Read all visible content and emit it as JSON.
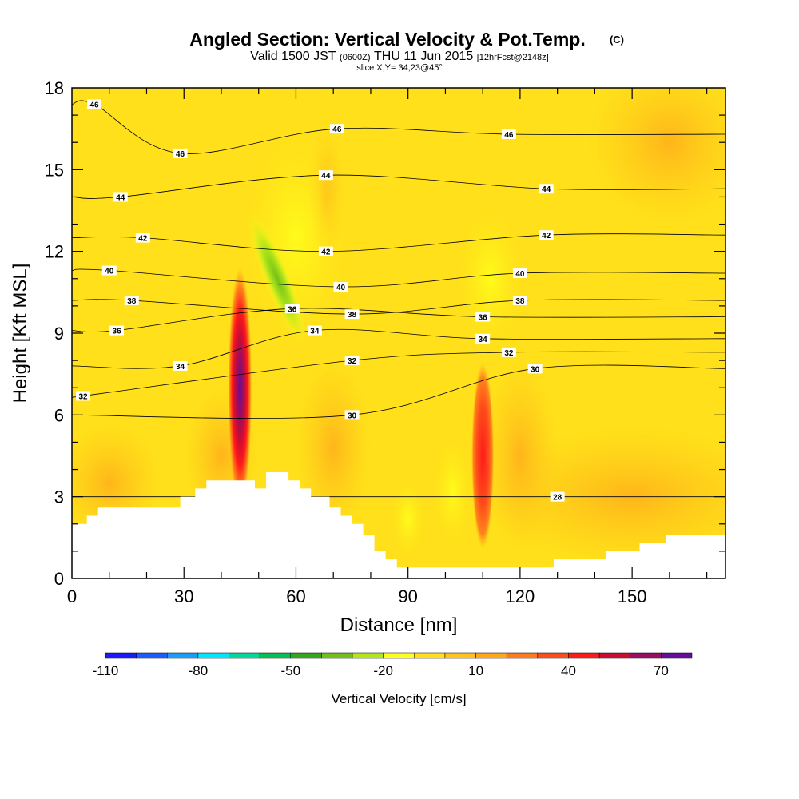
{
  "chart_data": {
    "type": "heatmap",
    "title": "Angled Section: Vertical Velocity & Pot.Temp.",
    "title_mark": "(C)",
    "subtitle": {
      "prefix": "Valid 1500 JST",
      "utc": "(0600Z)",
      "date": "THU 11 Jun 2015",
      "forecast": "[12hrFcst@2148z]"
    },
    "slice_label": "slice X,Y= 34,23@45°",
    "xlabel": "Distance [nm]",
    "ylabel": "Height [Kft MSL]",
    "xlim": [
      0,
      175
    ],
    "ylim": [
      0,
      18
    ],
    "x_ticks": [
      0,
      30,
      60,
      90,
      120,
      150
    ],
    "y_ticks": [
      0,
      3,
      6,
      9,
      12,
      15,
      18
    ],
    "colorbar": {
      "label": "Vertical Velocity [cm/s]",
      "ticks": [
        "-110",
        "-80",
        "-50",
        "-20",
        "10",
        "40",
        "70"
      ],
      "colors": [
        "#1a1aff",
        "#1a5cff",
        "#1a9cff",
        "#00e6ff",
        "#00d99a",
        "#00bf55",
        "#33a61a",
        "#73bf1a",
        "#b3e61a",
        "#ffff1a",
        "#ffe01a",
        "#ffc31a",
        "#ffa61a",
        "#ff7a1a",
        "#ff4d1a",
        "#ff1a1a",
        "#cc0d33",
        "#990d66",
        "#660d99"
      ]
    },
    "series": [
      {
        "name": "updraft",
        "points": [
          [
            45,
            7
          ],
          [
            110,
            4.5
          ]
        ]
      },
      {
        "name": "downdraft",
        "points": [
          [
            55,
            11
          ]
        ]
      }
    ],
    "isentropes": [
      {
        "level": 28,
        "labels": [
          [
            130,
            3
          ]
        ]
      },
      {
        "level": 30,
        "labels": [
          [
            75,
            6
          ],
          [
            124,
            7.7
          ]
        ]
      },
      {
        "level": 32,
        "labels": [
          [
            3,
            6.7
          ],
          [
            75,
            8
          ],
          [
            117,
            8.3
          ]
        ]
      },
      {
        "level": 34,
        "labels": [
          [
            29,
            7.8
          ],
          [
            65,
            9.1
          ],
          [
            110,
            8.8
          ]
        ]
      },
      {
        "level": 36,
        "labels": [
          [
            12,
            9.1
          ],
          [
            59,
            9.9
          ],
          [
            110,
            9.6
          ]
        ]
      },
      {
        "level": 38,
        "labels": [
          [
            16,
            10.2
          ],
          [
            75,
            9.7
          ],
          [
            120,
            10.2
          ]
        ]
      },
      {
        "level": 40,
        "labels": [
          [
            10,
            11.3
          ],
          [
            72,
            10.7
          ],
          [
            120,
            11.2
          ]
        ]
      },
      {
        "level": 42,
        "labels": [
          [
            19,
            12.5
          ],
          [
            68,
            12
          ],
          [
            127,
            12.6
          ]
        ]
      },
      {
        "level": 44,
        "labels": [
          [
            13,
            14
          ],
          [
            68,
            14.8
          ],
          [
            127,
            14.3
          ]
        ]
      },
      {
        "level": 46,
        "labels": [
          [
            6,
            17.4
          ],
          [
            29,
            15.6
          ],
          [
            71,
            16.5
          ],
          [
            117,
            16.3
          ]
        ]
      }
    ],
    "terrain": [
      [
        0,
        2
      ],
      [
        4,
        2
      ],
      [
        4,
        2.3
      ],
      [
        7,
        2.3
      ],
      [
        7,
        2.6
      ],
      [
        29,
        2.6
      ],
      [
        29,
        3
      ],
      [
        33,
        3
      ],
      [
        33,
        3.3
      ],
      [
        36,
        3.3
      ],
      [
        36,
        3.6
      ],
      [
        49,
        3.6
      ],
      [
        49,
        3.3
      ],
      [
        52,
        3.3
      ],
      [
        52,
        3.9
      ],
      [
        58,
        3.9
      ],
      [
        58,
        3.6
      ],
      [
        61,
        3.6
      ],
      [
        61,
        3.3
      ],
      [
        64,
        3.3
      ],
      [
        64,
        3
      ],
      [
        69,
        3
      ],
      [
        69,
        2.6
      ],
      [
        72,
        2.6
      ],
      [
        72,
        2.3
      ],
      [
        75,
        2.3
      ],
      [
        75,
        2
      ],
      [
        78,
        2
      ],
      [
        78,
        1.6
      ],
      [
        81,
        1.6
      ],
      [
        81,
        1
      ],
      [
        84,
        1
      ],
      [
        84,
        0.7
      ],
      [
        87,
        0.7
      ],
      [
        87,
        0.4
      ],
      [
        129,
        0.4
      ],
      [
        129,
        0.7
      ],
      [
        143,
        0.7
      ],
      [
        143,
        1
      ],
      [
        152,
        1
      ],
      [
        152,
        1.3
      ],
      [
        159,
        1.3
      ],
      [
        159,
        1.6
      ],
      [
        175,
        1.6
      ]
    ]
  }
}
